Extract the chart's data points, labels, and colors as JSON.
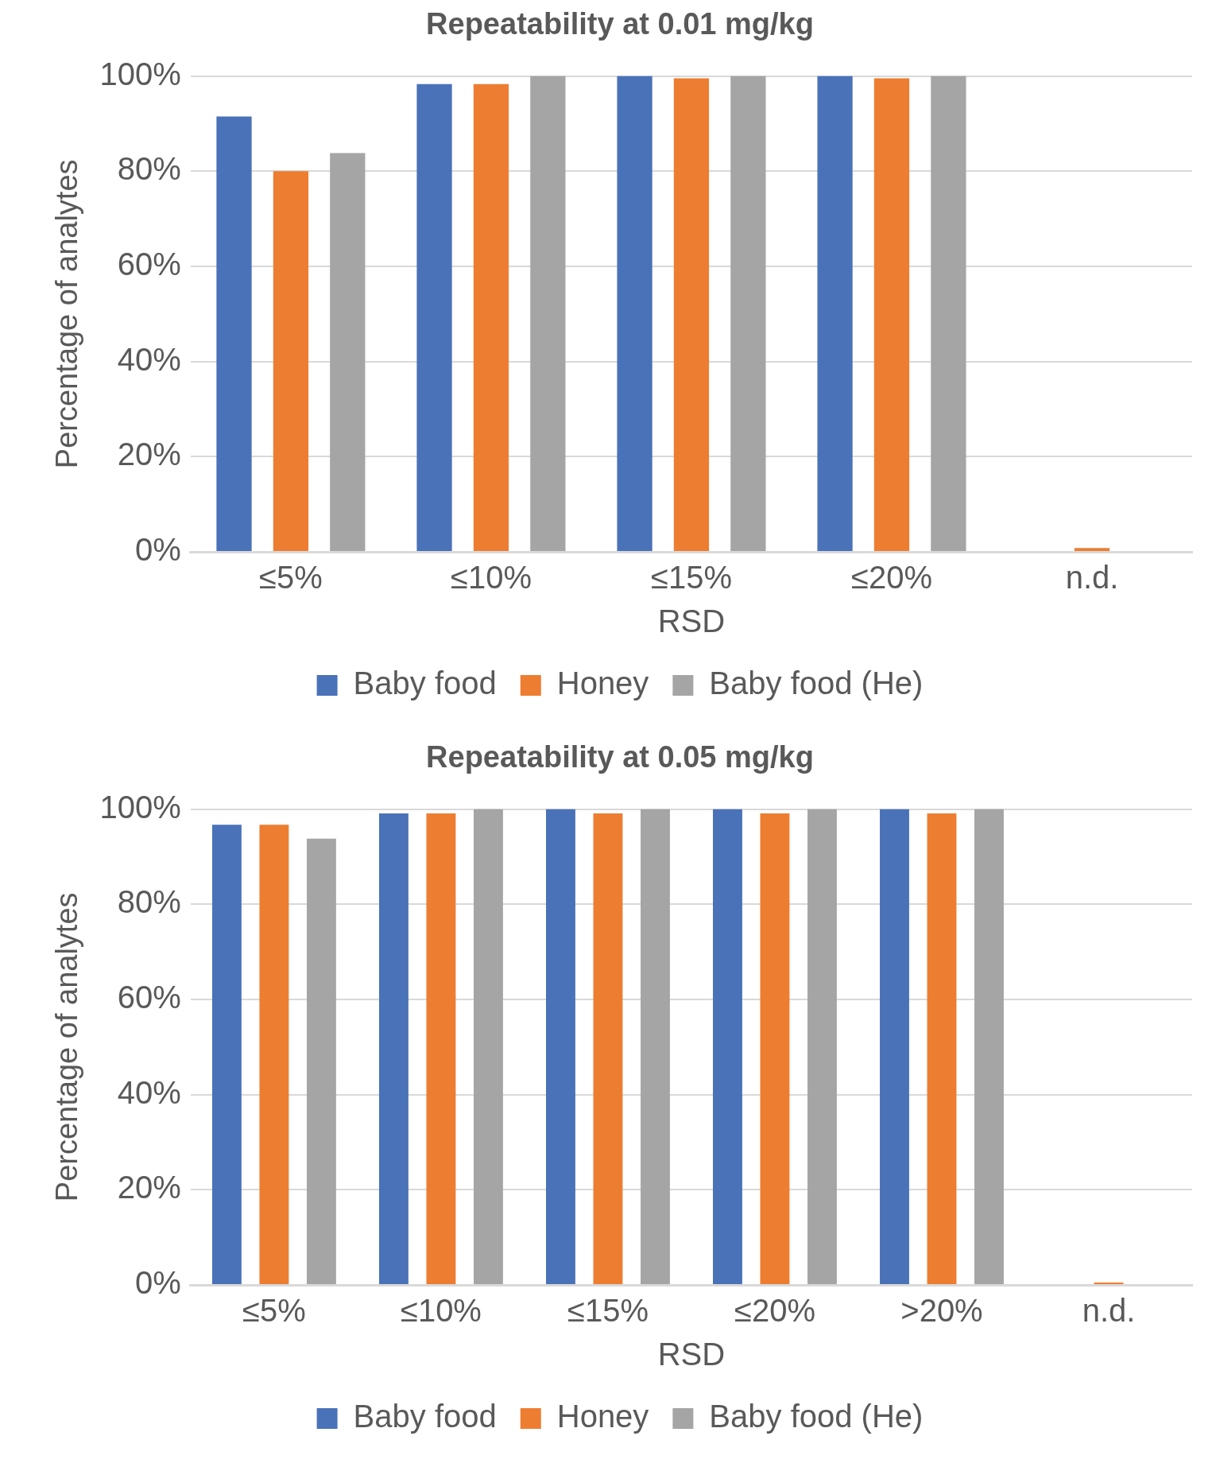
{
  "chart_data": [
    {
      "type": "bar",
      "title": "Repeatability at 0.01 mg/kg",
      "xlabel": "RSD",
      "ylabel": "Percentage of analytes",
      "categories": [
        "≤5%",
        "≤10%",
        "≤15%",
        "≤20%",
        "n.d."
      ],
      "series": [
        {
          "name": "Baby food",
          "color": "#4a72b8",
          "values": [
            91.5,
            98.3,
            100,
            100,
            0
          ]
        },
        {
          "name": "Honey",
          "color": "#ed7d31",
          "values": [
            80,
            98.3,
            99.5,
            99.5,
            0.8
          ]
        },
        {
          "name": "Baby food (He)",
          "color": "#a5a5a5",
          "values": [
            83.8,
            100,
            100,
            100,
            0
          ]
        }
      ],
      "ylim": [
        0,
        100
      ],
      "yticks": [
        {
          "value": 0,
          "label": "0%"
        },
        {
          "value": 20,
          "label": "20%"
        },
        {
          "value": 40,
          "label": "40%"
        },
        {
          "value": 60,
          "label": "60%"
        },
        {
          "value": 80,
          "label": "80%"
        },
        {
          "value": 100,
          "label": "100%"
        }
      ],
      "grid": "y",
      "legend": "bottom"
    },
    {
      "type": "bar",
      "title": "Repeatability at 0.05 mg/kg",
      "xlabel": "RSD",
      "ylabel": "Percentage of analytes",
      "categories": [
        "≤5%",
        "≤10%",
        "≤15%",
        "≤20%",
        ">20%",
        "n.d."
      ],
      "series": [
        {
          "name": "Baby food",
          "color": "#4a72b8",
          "values": [
            96.7,
            99.1,
            100,
            100,
            100,
            0
          ]
        },
        {
          "name": "Honey",
          "color": "#ed7d31",
          "values": [
            96.7,
            99.1,
            99.1,
            99.1,
            99.1,
            0.5
          ]
        },
        {
          "name": "Baby food (He)",
          "color": "#a5a5a5",
          "values": [
            93.8,
            100,
            100,
            100,
            100,
            0
          ]
        }
      ],
      "ylim": [
        0,
        100
      ],
      "yticks": [
        {
          "value": 0,
          "label": "0%"
        },
        {
          "value": 20,
          "label": "20%"
        },
        {
          "value": 40,
          "label": "40%"
        },
        {
          "value": 60,
          "label": "60%"
        },
        {
          "value": 80,
          "label": "80%"
        },
        {
          "value": 100,
          "label": "100%"
        }
      ],
      "grid": "y",
      "legend": "bottom"
    }
  ]
}
